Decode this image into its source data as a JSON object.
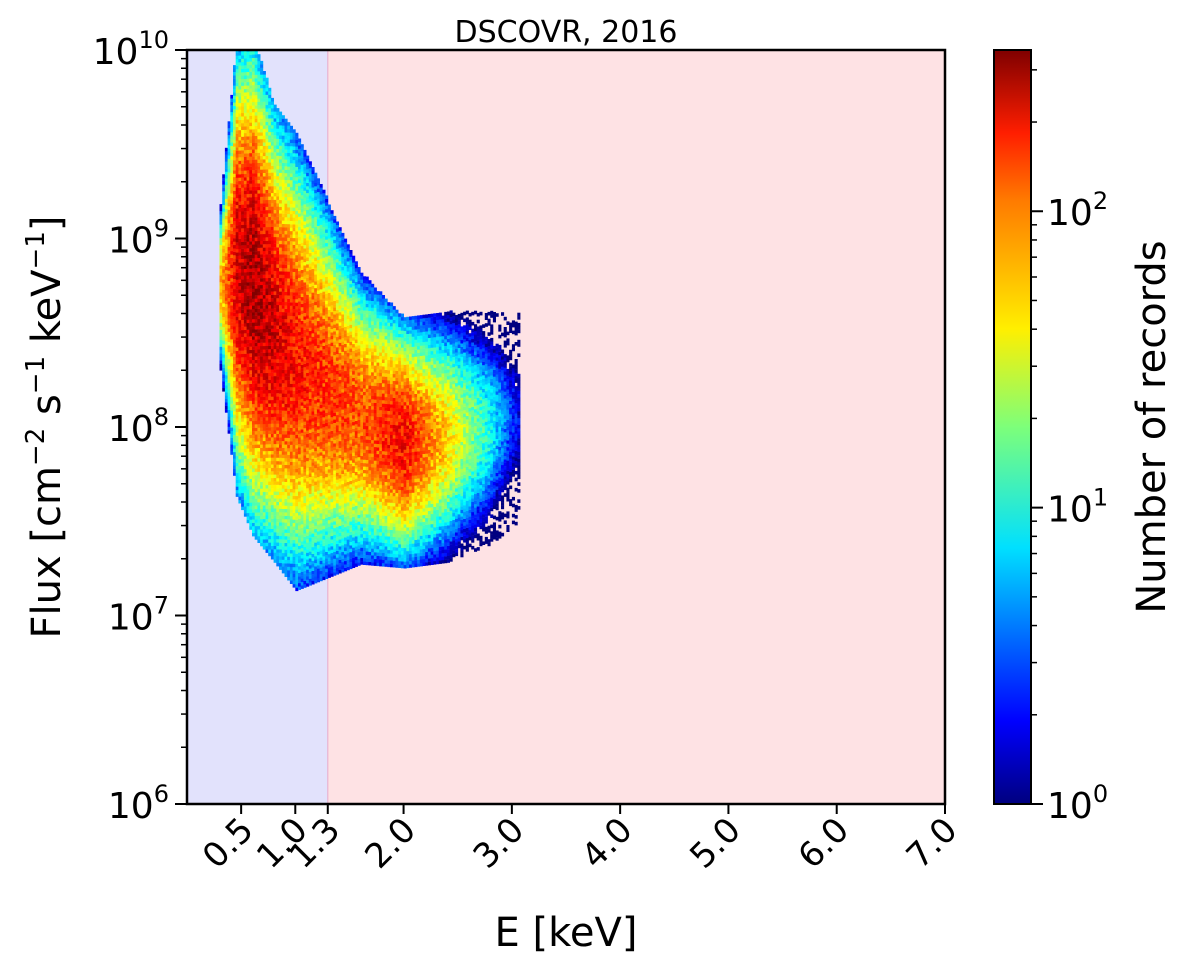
{
  "chart_data": {
    "type": "heatmap",
    "title": "DSCOVR, 2016",
    "xlabel": "E [keV]",
    "ylabel": "Flux [cm",
    "ylabel_parts": [
      "Flux [cm",
      "−2",
      " s",
      "−1",
      " keV",
      "−1",
      "]"
    ],
    "colorbar_label": "Number of records",
    "x_scale": "linear",
    "y_scale": "log",
    "xlim": [
      0.0,
      7.0
    ],
    "ylim": [
      1000000,
      10000000000
    ],
    "x_ticks": [
      0.5,
      1.0,
      1.3,
      2.0,
      3.0,
      4.0,
      5.0,
      6.0,
      7.0
    ],
    "x_tick_labels": [
      "0.5",
      "1.0",
      "1.3",
      "2.0",
      "3.0",
      "4.0",
      "5.0",
      "6.0",
      "7.0"
    ],
    "y_tick_exponents": [
      "6",
      "7",
      "8",
      "9",
      "10"
    ],
    "y_tick_base": "10",
    "colorbar_scale": "log",
    "colorbar_range": [
      1,
      350
    ],
    "colorbar_tick_exponents": [
      "0",
      "1",
      "2"
    ],
    "colormap": "jet",
    "shaded_regions": [
      {
        "x_from": 0.0,
        "x_to": 1.3,
        "color": "#e2e2fc"
      },
      {
        "x_from": 1.3,
        "x_to": 7.0,
        "color": "#fee2e4"
      }
    ],
    "density_ridge": [
      {
        "e": 0.3,
        "flux_log10_center": 8.75,
        "flux_log10_halfwidth": 0.2,
        "count_peak": 60
      },
      {
        "e": 0.45,
        "flux_log10_center": 8.85,
        "flux_log10_halfwidth": 0.55,
        "count_peak": 220
      },
      {
        "e": 0.6,
        "flux_log10_center": 8.75,
        "flux_log10_halfwidth": 0.6,
        "count_peak": 300
      },
      {
        "e": 0.8,
        "flux_log10_center": 8.5,
        "flux_log10_halfwidth": 0.55,
        "count_peak": 220
      },
      {
        "e": 1.0,
        "flux_log10_center": 8.35,
        "flux_log10_halfwidth": 0.55,
        "count_peak": 160
      },
      {
        "e": 1.3,
        "flux_log10_center": 8.2,
        "flux_log10_halfwidth": 0.45,
        "count_peak": 130
      },
      {
        "e": 1.6,
        "flux_log10_center": 8.05,
        "flux_log10_halfwidth": 0.35,
        "count_peak": 110
      },
      {
        "e": 2.0,
        "flux_log10_center": 7.92,
        "flux_log10_halfwidth": 0.3,
        "count_peak": 180
      },
      {
        "e": 2.4,
        "flux_log10_center": 7.95,
        "flux_log10_halfwidth": 0.3,
        "count_peak": 50
      },
      {
        "e": 2.8,
        "flux_log10_center": 8.0,
        "flux_log10_halfwidth": 0.28,
        "count_peak": 10
      },
      {
        "e": 3.05,
        "flux_log10_center": 8.05,
        "flux_log10_halfwidth": 0.25,
        "count_peak": 2
      }
    ]
  }
}
